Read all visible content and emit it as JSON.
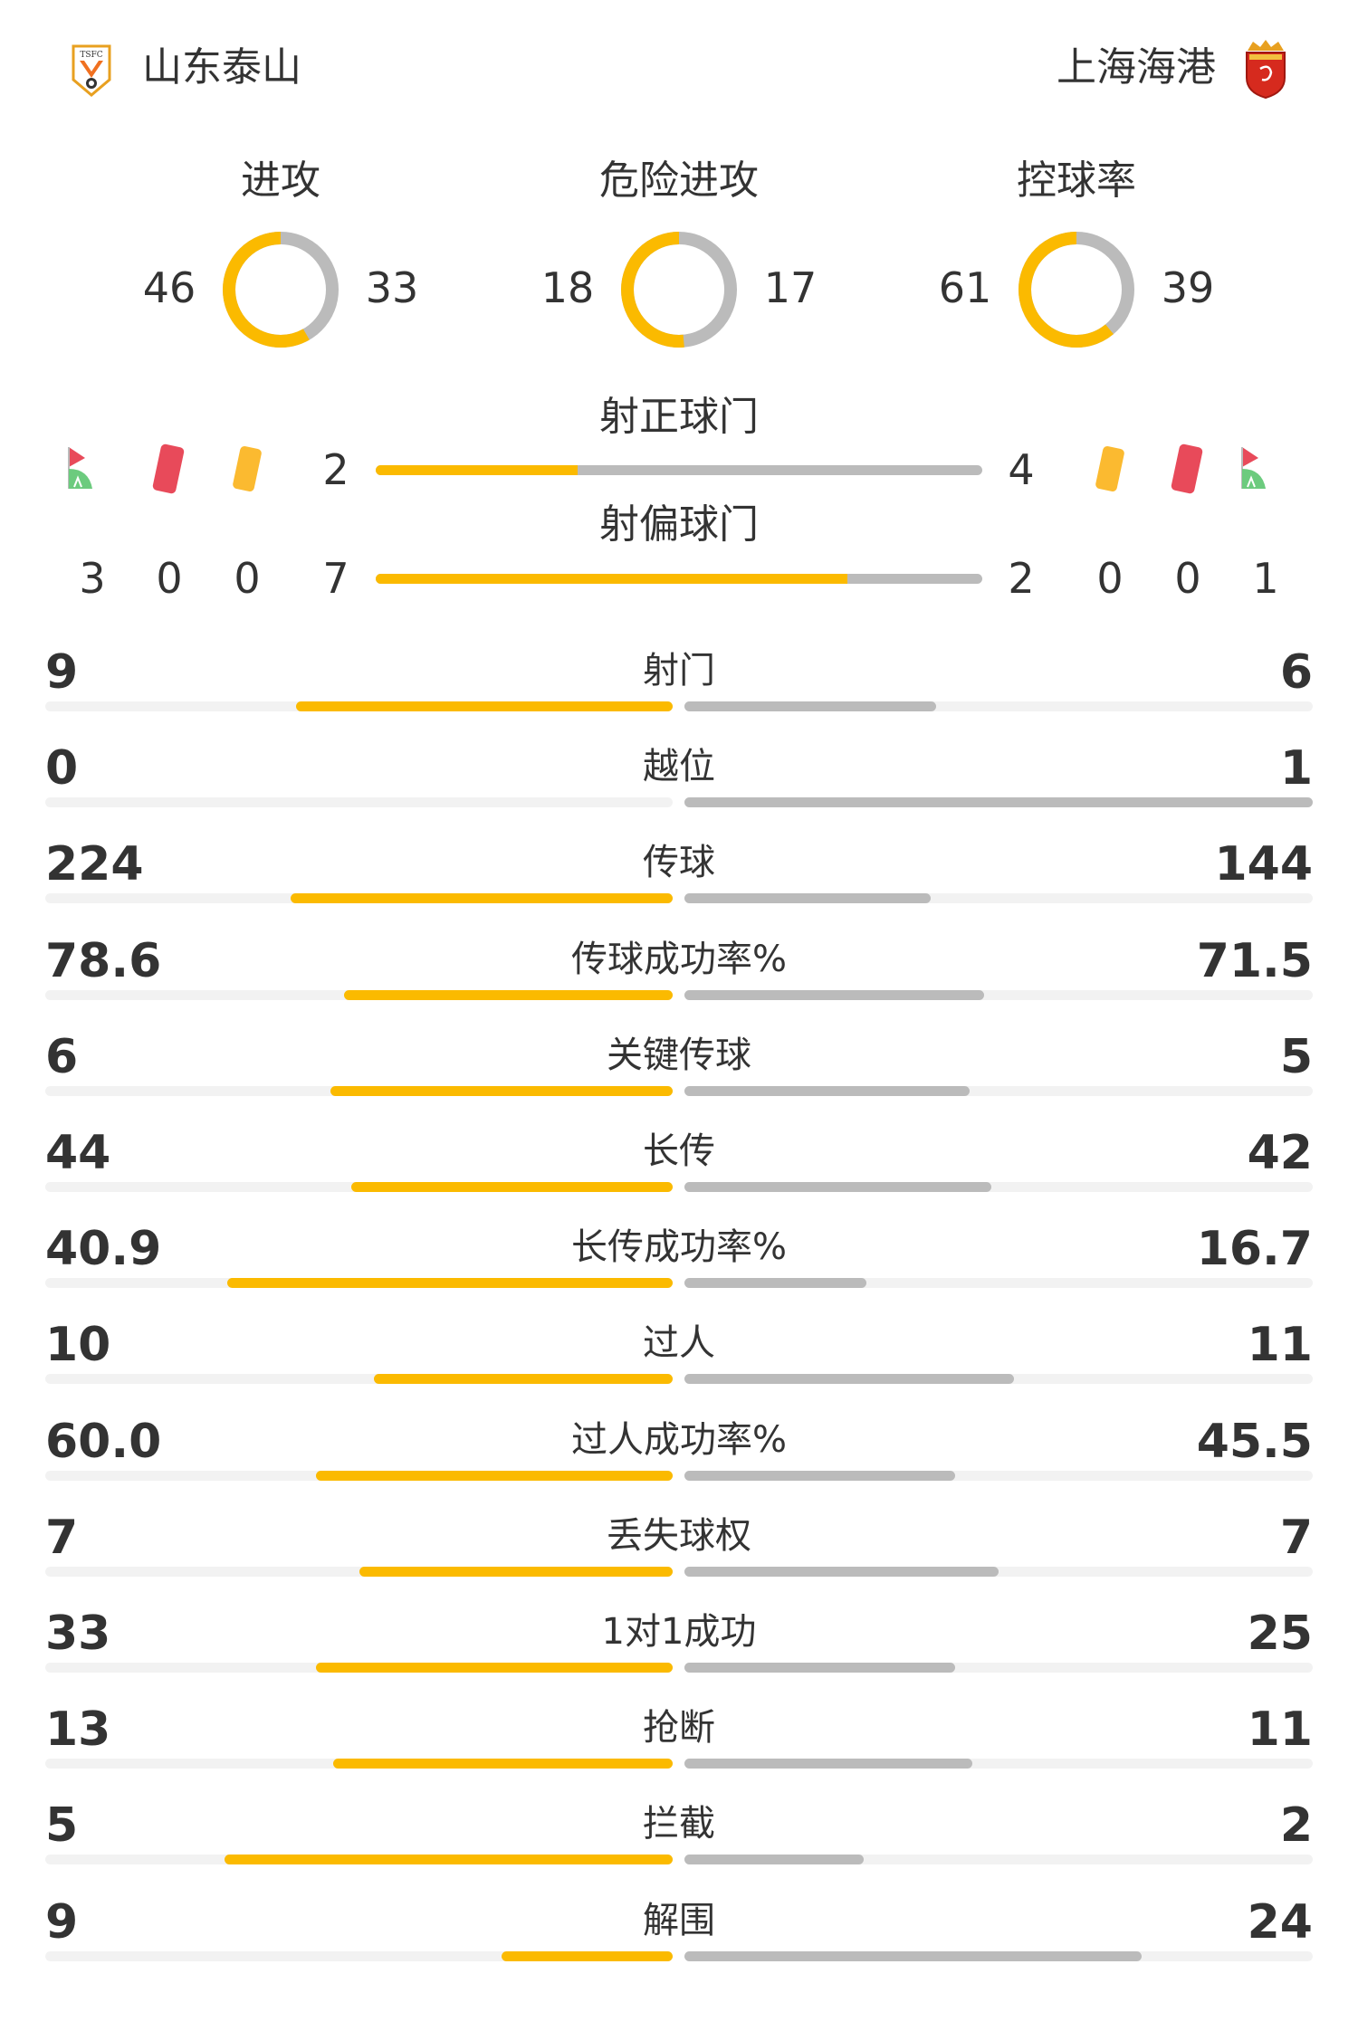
{
  "colors": {
    "home": "#FBBA00",
    "away": "#BBBBBB",
    "track": "#F2F2F2",
    "text": "#333333",
    "red_card": "#E84A5A",
    "yellow_card": "#FBBA30",
    "corner_green": "#6CCB7E"
  },
  "home": {
    "name": "山东泰山",
    "logo_text": "TSFC",
    "logo_icon": "shandong-taishan-crest"
  },
  "away": {
    "name": "上海海港",
    "logo_icon": "shanghai-port-crest"
  },
  "donuts": [
    {
      "label": "进攻",
      "home": 46,
      "away": 33
    },
    {
      "label": "危险进攻",
      "home": 18,
      "away": 17
    },
    {
      "label": "控球率",
      "home": 61,
      "away": 39
    }
  ],
  "shots_on_target": {
    "label": "射正球门",
    "home": 2,
    "away": 4
  },
  "shots_off_target": {
    "label": "射偏球门",
    "home": 7,
    "away": 2
  },
  "icons": [
    "corner-flag-icon",
    "red-card-icon",
    "yellow-card-icon"
  ],
  "home_counts": {
    "corners": 3,
    "red_cards": 0,
    "yellow_cards": 0
  },
  "away_counts": {
    "yellow_cards": 0,
    "red_cards": 0,
    "corners": 1
  },
  "stats": [
    {
      "label": "射门",
      "home": "9",
      "away": "6"
    },
    {
      "label": "越位",
      "home": "0",
      "away": "1"
    },
    {
      "label": "传球",
      "home": "224",
      "away": "144"
    },
    {
      "label": "传球成功率%",
      "home": "78.6",
      "away": "71.5"
    },
    {
      "label": "关键传球",
      "home": "6",
      "away": "5"
    },
    {
      "label": "长传",
      "home": "44",
      "away": "42"
    },
    {
      "label": "长传成功率%",
      "home": "40.9",
      "away": "16.7"
    },
    {
      "label": "过人",
      "home": "10",
      "away": "11"
    },
    {
      "label": "过人成功率%",
      "home": "60.0",
      "away": "45.5"
    },
    {
      "label": "丢失球权",
      "home": "7",
      "away": "7"
    },
    {
      "label": "1对1成功",
      "home": "33",
      "away": "25"
    },
    {
      "label": "抢断",
      "home": "13",
      "away": "11"
    },
    {
      "label": "拦截",
      "home": "5",
      "away": "2"
    },
    {
      "label": "解围",
      "home": "9",
      "away": "24"
    }
  ]
}
